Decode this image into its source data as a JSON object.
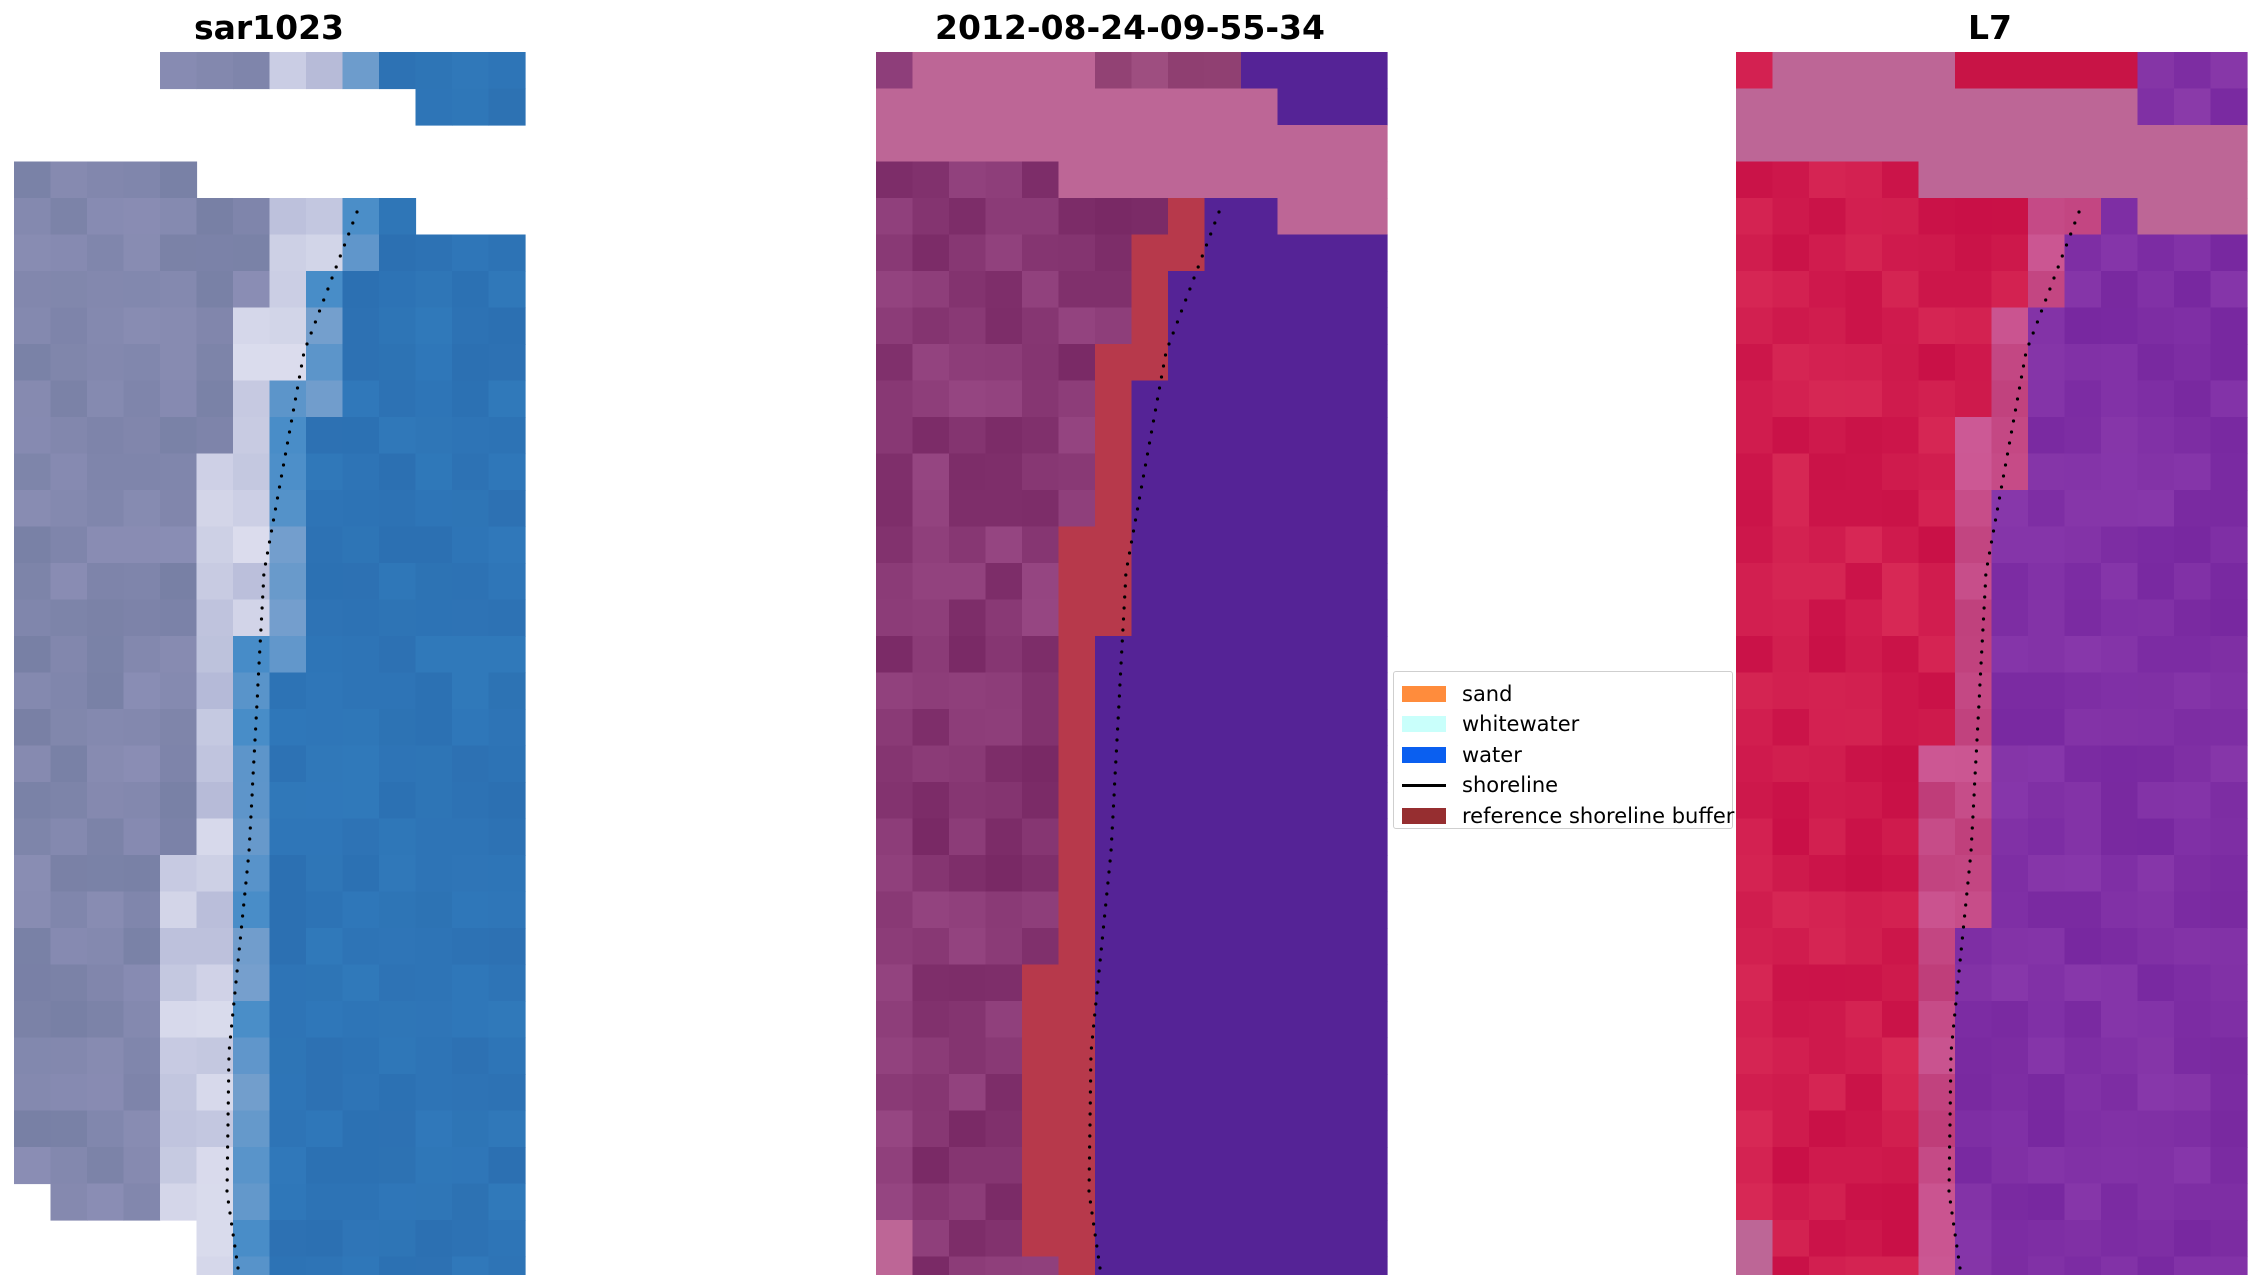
{
  "panels": [
    {
      "title": "sar1023",
      "palette": "rgb"
    },
    {
      "title": "2012-08-24-09-55-34",
      "palette": "classified"
    },
    {
      "title": "L7",
      "palette": "false-color"
    }
  ],
  "legend": {
    "items": [
      {
        "label": "sand",
        "color": "#ff8c3c",
        "kind": "patch"
      },
      {
        "label": "whitewater",
        "color": "#c9fffb",
        "kind": "patch"
      },
      {
        "label": "water",
        "color": "#0a5ff0",
        "kind": "patch"
      },
      {
        "label": "shoreline",
        "color": "#000000",
        "kind": "line"
      },
      {
        "label": "reference shoreline buffer",
        "color": "#962e30",
        "kind": "patch"
      }
    ]
  }
}
